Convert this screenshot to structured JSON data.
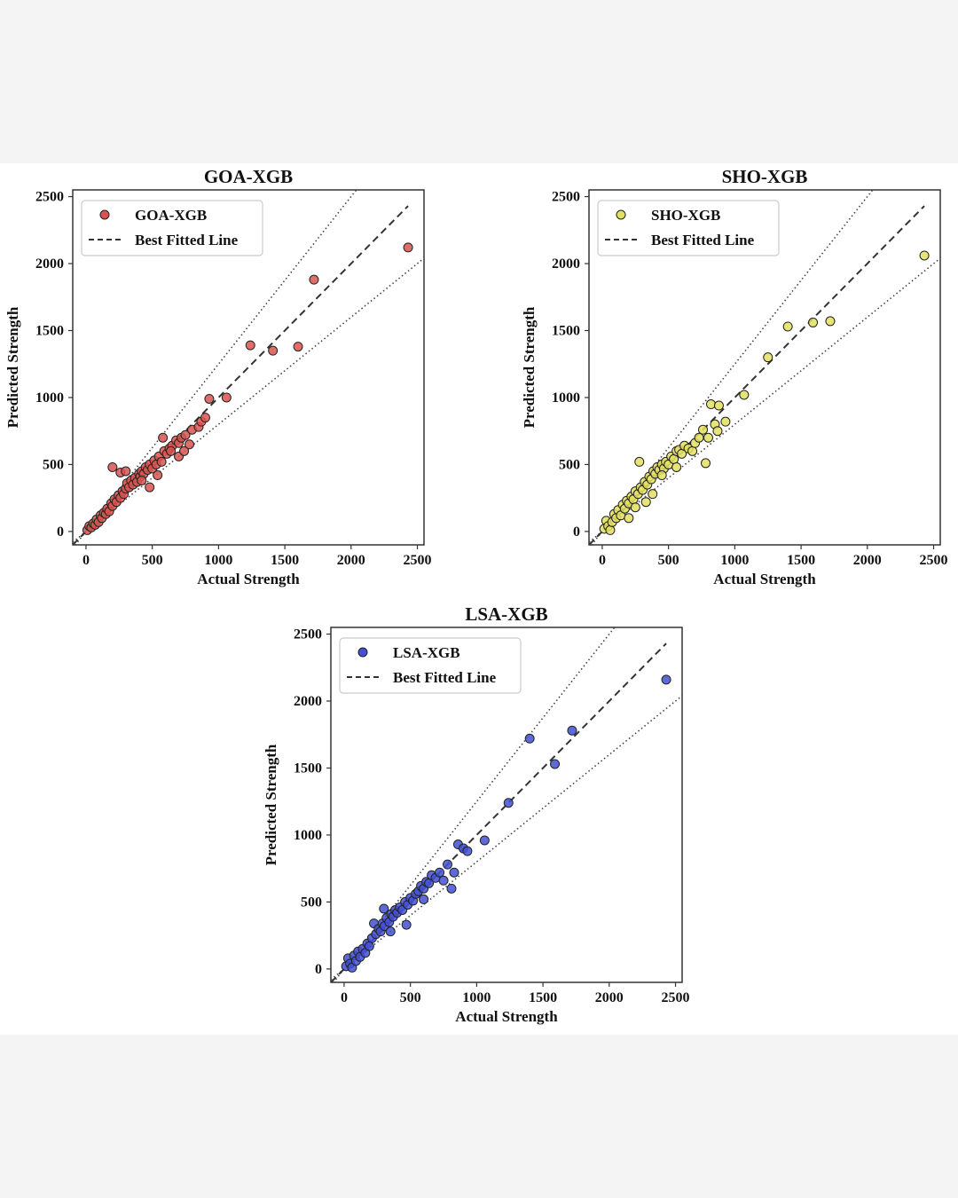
{
  "chart_data": [
    {
      "type": "scatter",
      "title": "GOA-XGB",
      "xlabel": "Actual Strength",
      "ylabel": "Predicted Strength",
      "xlim": [
        -100,
        2550
      ],
      "ylim": [
        -100,
        2550
      ],
      "xticks": [
        "0",
        "500",
        "1000",
        "1500",
        "2000",
        "2500"
      ],
      "yticks": [
        "0",
        "500",
        "1000",
        "1500",
        "2000",
        "2500"
      ],
      "legend": {
        "position": "top-left",
        "series_label": "GOA-XGB",
        "fit_label": "Best Fitted Line"
      },
      "color": "#d9534f",
      "points": [
        [
          10,
          10
        ],
        [
          25,
          40
        ],
        [
          40,
          30
        ],
        [
          55,
          60
        ],
        [
          70,
          50
        ],
        [
          80,
          90
        ],
        [
          95,
          70
        ],
        [
          110,
          120
        ],
        [
          120,
          100
        ],
        [
          135,
          140
        ],
        [
          150,
          130
        ],
        [
          160,
          170
        ],
        [
          175,
          150
        ],
        [
          190,
          210
        ],
        [
          200,
          190
        ],
        [
          215,
          240
        ],
        [
          230,
          220
        ],
        [
          245,
          270
        ],
        [
          260,
          250
        ],
        [
          275,
          300
        ],
        [
          285,
          280
        ],
        [
          300,
          320
        ],
        [
          310,
          360
        ],
        [
          325,
          330
        ],
        [
          340,
          380
        ],
        [
          355,
          350
        ],
        [
          370,
          400
        ],
        [
          385,
          370
        ],
        [
          400,
          430
        ],
        [
          410,
          410
        ],
        [
          420,
          450
        ],
        [
          435,
          430
        ],
        [
          450,
          480
        ],
        [
          465,
          460
        ],
        [
          480,
          500
        ],
        [
          500,
          470
        ],
        [
          515,
          530
        ],
        [
          530,
          500
        ],
        [
          550,
          560
        ],
        [
          570,
          520
        ],
        [
          590,
          600
        ],
        [
          610,
          580
        ],
        [
          630,
          620
        ],
        [
          650,
          640
        ],
        [
          680,
          680
        ],
        [
          700,
          660
        ],
        [
          720,
          700
        ],
        [
          750,
          720
        ],
        [
          780,
          650
        ],
        [
          800,
          760
        ],
        [
          850,
          780
        ],
        [
          870,
          820
        ],
        [
          900,
          850
        ],
        [
          200,
          480
        ],
        [
          260,
          440
        ],
        [
          300,
          450
        ],
        [
          420,
          380
        ],
        [
          480,
          330
        ],
        [
          540,
          420
        ],
        [
          580,
          700
        ],
        [
          640,
          600
        ],
        [
          700,
          560
        ],
        [
          740,
          600
        ],
        [
          930,
          990
        ],
        [
          1060,
          1000
        ],
        [
          1240,
          1390
        ],
        [
          1410,
          1350
        ],
        [
          1600,
          1380
        ],
        [
          1720,
          1880
        ],
        [
          2430,
          2120
        ]
      ]
    },
    {
      "type": "scatter",
      "title": "SHO-XGB",
      "xlabel": "Actual Strength",
      "ylabel": "Predicted Strength",
      "xlim": [
        -100,
        2550
      ],
      "ylim": [
        -100,
        2550
      ],
      "xticks": [
        "0",
        "500",
        "1000",
        "1500",
        "2000",
        "2500"
      ],
      "yticks": [
        "0",
        "500",
        "1000",
        "1500",
        "2000",
        "2500"
      ],
      "legend": {
        "position": "top-left",
        "series_label": "SHO-XGB",
        "fit_label": "Best Fitted Line"
      },
      "color": "#e3e060",
      "points": [
        [
          15,
          20
        ],
        [
          30,
          80
        ],
        [
          45,
          40
        ],
        [
          60,
          10
        ],
        [
          75,
          70
        ],
        [
          90,
          130
        ],
        [
          105,
          100
        ],
        [
          120,
          160
        ],
        [
          140,
          120
        ],
        [
          155,
          200
        ],
        [
          170,
          170
        ],
        [
          185,
          230
        ],
        [
          200,
          210
        ],
        [
          220,
          260
        ],
        [
          235,
          240
        ],
        [
          250,
          300
        ],
        [
          270,
          280
        ],
        [
          280,
          520
        ],
        [
          290,
          330
        ],
        [
          305,
          310
        ],
        [
          320,
          370
        ],
        [
          340,
          350
        ],
        [
          355,
          410
        ],
        [
          370,
          390
        ],
        [
          385,
          450
        ],
        [
          400,
          430
        ],
        [
          415,
          480
        ],
        [
          430,
          460
        ],
        [
          450,
          500
        ],
        [
          465,
          470
        ],
        [
          480,
          520
        ],
        [
          500,
          500
        ],
        [
          520,
          560
        ],
        [
          540,
          540
        ],
        [
          560,
          600
        ],
        [
          580,
          610
        ],
        [
          600,
          580
        ],
        [
          620,
          640
        ],
        [
          650,
          620
        ],
        [
          680,
          600
        ],
        [
          700,
          660
        ],
        [
          730,
          700
        ],
        [
          760,
          760
        ],
        [
          780,
          510
        ],
        [
          800,
          700
        ],
        [
          820,
          950
        ],
        [
          850,
          800
        ],
        [
          870,
          750
        ],
        [
          880,
          940
        ],
        [
          930,
          820
        ],
        [
          1070,
          1020
        ],
        [
          1250,
          1300
        ],
        [
          1400,
          1530
        ],
        [
          1590,
          1560
        ],
        [
          1720,
          1570
        ],
        [
          2430,
          2060
        ],
        [
          200,
          100
        ],
        [
          250,
          180
        ],
        [
          330,
          220
        ],
        [
          450,
          420
        ],
        [
          380,
          280
        ],
        [
          560,
          480
        ]
      ]
    },
    {
      "type": "scatter",
      "title": "LSA-XGB",
      "xlabel": "Actual Strength",
      "ylabel": "Predicted Strength",
      "xlim": [
        -100,
        2550
      ],
      "ylim": [
        -100,
        2550
      ],
      "xticks": [
        "0",
        "500",
        "1000",
        "1500",
        "2000",
        "2500"
      ],
      "yticks": [
        "0",
        "500",
        "1000",
        "1500",
        "2000",
        "2500"
      ],
      "legend": {
        "position": "top-left",
        "series_label": "LSA-XGB",
        "fit_label": "Best Fitted Line"
      },
      "color": "#4250d4",
      "points": [
        [
          15,
          20
        ],
        [
          30,
          80
        ],
        [
          45,
          40
        ],
        [
          60,
          10
        ],
        [
          75,
          100
        ],
        [
          90,
          60
        ],
        [
          105,
          130
        ],
        [
          120,
          90
        ],
        [
          140,
          150
        ],
        [
          160,
          120
        ],
        [
          175,
          190
        ],
        [
          190,
          170
        ],
        [
          210,
          230
        ],
        [
          225,
          340
        ],
        [
          240,
          260
        ],
        [
          260,
          300
        ],
        [
          275,
          280
        ],
        [
          290,
          340
        ],
        [
          305,
          320
        ],
        [
          320,
          380
        ],
        [
          340,
          350
        ],
        [
          355,
          410
        ],
        [
          370,
          390
        ],
        [
          385,
          440
        ],
        [
          400,
          420
        ],
        [
          420,
          460
        ],
        [
          440,
          440
        ],
        [
          460,
          500
        ],
        [
          480,
          480
        ],
        [
          500,
          530
        ],
        [
          520,
          510
        ],
        [
          540,
          560
        ],
        [
          560,
          580
        ],
        [
          580,
          620
        ],
        [
          600,
          600
        ],
        [
          620,
          650
        ],
        [
          640,
          640
        ],
        [
          660,
          700
        ],
        [
          690,
          680
        ],
        [
          720,
          720
        ],
        [
          750,
          660
        ],
        [
          780,
          780
        ],
        [
          810,
          600
        ],
        [
          830,
          720
        ],
        [
          860,
          930
        ],
        [
          900,
          900
        ],
        [
          930,
          880
        ],
        [
          1060,
          960
        ],
        [
          1240,
          1240
        ],
        [
          1400,
          1720
        ],
        [
          1590,
          1530
        ],
        [
          1720,
          1780
        ],
        [
          2430,
          2160
        ],
        [
          300,
          450
        ],
        [
          350,
          280
        ],
        [
          470,
          330
        ],
        [
          600,
          520
        ]
      ]
    }
  ]
}
